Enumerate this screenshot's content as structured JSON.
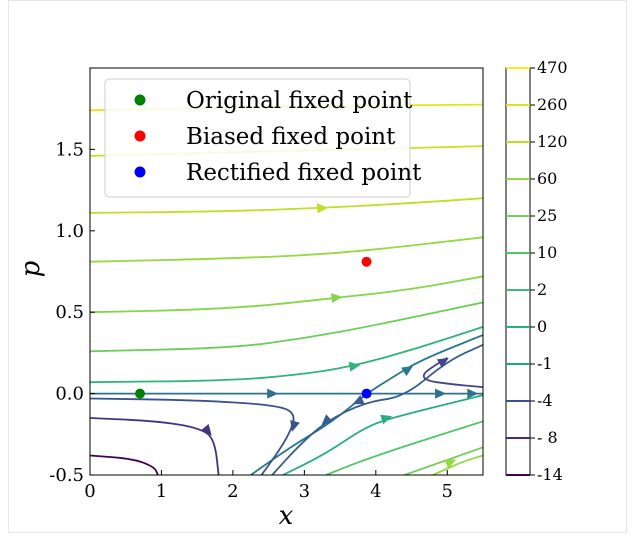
{
  "chart_data": {
    "type": "line",
    "xlabel": "x",
    "ylabel": "p",
    "xlim": [
      0,
      5.5
    ],
    "ylim": [
      -0.5,
      2.0
    ],
    "x_ticks": [
      "0",
      "1",
      "2",
      "3",
      "4",
      "5"
    ],
    "y_ticks": [
      "-0.5",
      "0.0",
      "0.5",
      "1.0",
      "1.5"
    ],
    "legend": {
      "placement": "top-left",
      "entries": [
        {
          "label": "Original fixed point",
          "color": "#008000"
        },
        {
          "label": "Biased fixed point",
          "color": "#ff0000"
        },
        {
          "label": "Rectified fixed point",
          "color": "#0000ff"
        }
      ]
    },
    "fixed_points": [
      {
        "name": "Original fixed point",
        "x": 0.7,
        "y": 0.0,
        "color": "#008000"
      },
      {
        "name": "Biased fixed point",
        "x": 3.87,
        "y": 0.81,
        "color": "#ff0000"
      },
      {
        "name": "Rectified fixed point",
        "x": 3.87,
        "y": 0.0,
        "color": "#0000ff"
      }
    ],
    "colorbar": {
      "labels": [
        "470",
        "260",
        "120",
        "60",
        "25",
        "10",
        "2",
        "0",
        "-1",
        "-4",
        "- 8",
        "-14"
      ],
      "colors": [
        "#fde725",
        "#dde318",
        "#bade28",
        "#95d840",
        "#73d056",
        "#55c667",
        "#3cbb75",
        "#29af7f",
        "#20a386",
        "#3b528b",
        "#472d7b",
        "#440154"
      ]
    },
    "streamlines": [
      {
        "color": "#e5e419",
        "points": [
          [
            0,
            1.74
          ],
          [
            2.75,
            1.765
          ],
          [
            5.5,
            1.775
          ]
        ],
        "arrows": []
      },
      {
        "color": "#c8e020",
        "points": [
          [
            0,
            1.46
          ],
          [
            2.75,
            1.49
          ],
          [
            5.5,
            1.52
          ]
        ],
        "arrows": []
      },
      {
        "color": "#bddf26",
        "points": [
          [
            0,
            1.11
          ],
          [
            2,
            1.12
          ],
          [
            3.2,
            1.14
          ],
          [
            4.5,
            1.17
          ],
          [
            5.5,
            1.2
          ]
        ],
        "arrows": [
          [
            3.25,
            1.14
          ]
        ]
      },
      {
        "color": "#95d840",
        "points": [
          [
            0,
            0.81
          ],
          [
            2,
            0.83
          ],
          [
            3.5,
            0.86
          ],
          [
            5.5,
            0.96
          ]
        ],
        "arrows": []
      },
      {
        "color": "#86d549",
        "points": [
          [
            0,
            0.5
          ],
          [
            2,
            0.52
          ],
          [
            3.5,
            0.59
          ],
          [
            4.5,
            0.64
          ],
          [
            5.5,
            0.72
          ]
        ],
        "arrows": [
          [
            3.45,
            0.59
          ]
        ]
      },
      {
        "color": "#6ccd5a",
        "points": [
          [
            0,
            0.26
          ],
          [
            2,
            0.28
          ],
          [
            3,
            0.34
          ],
          [
            4,
            0.42
          ],
          [
            5.5,
            0.56
          ]
        ],
        "arrows": []
      },
      {
        "color": "#2fb47c",
        "points": [
          [
            0,
            0.07
          ],
          [
            2,
            0.08
          ],
          [
            3,
            0.12
          ],
          [
            3.7,
            0.17
          ],
          [
            4.6,
            0.28
          ],
          [
            5.5,
            0.41
          ]
        ],
        "arrows": [
          [
            3.7,
            0.17
          ]
        ]
      },
      {
        "color": "#2a788e",
        "points": [
          [
            2.25,
            -0.5
          ],
          [
            2.8,
            -0.33
          ],
          [
            3.4,
            -0.17
          ],
          [
            3.87,
            0.0
          ],
          [
            4.2,
            0.09
          ],
          [
            4.6,
            0.2
          ],
          [
            5.5,
            0.36
          ]
        ],
        "arrows": [
          [
            4.45,
            0.15
          ]
        ]
      },
      {
        "color": "#2c718e",
        "points": [
          [
            0,
            0.0
          ],
          [
            2.5,
            0.0
          ],
          [
            3.87,
            0.0
          ],
          [
            5.0,
            0.0
          ],
          [
            5.5,
            0.0
          ]
        ],
        "arrows": [
          [
            2.55,
            0.0
          ],
          [
            4.9,
            0.0
          ],
          [
            5.35,
            0.0
          ]
        ]
      },
      {
        "color": "#365d8d",
        "points": [
          [
            5.5,
            0.3
          ],
          [
            5.0,
            0.2
          ],
          [
            4.4,
            -0.02
          ],
          [
            3.87,
            -0.05
          ],
          [
            3.3,
            -0.17
          ],
          [
            2.9,
            -0.33
          ],
          [
            2.55,
            -0.5
          ]
        ],
        "arrows": [
          [
            3.3,
            -0.17
          ],
          [
            3.75,
            -0.05
          ]
        ]
      },
      {
        "color": "#3b528b",
        "points": [
          [
            0,
            -0.03
          ],
          [
            1.5,
            -0.04
          ],
          [
            2.6,
            -0.07
          ],
          [
            2.88,
            -0.12
          ],
          [
            2.8,
            -0.24
          ],
          [
            2.6,
            -0.38
          ],
          [
            2.4,
            -0.5
          ]
        ],
        "arrows": [
          [
            2.85,
            -0.2
          ]
        ]
      },
      {
        "color": "#414487",
        "points": [
          [
            5.5,
            0.04
          ],
          [
            5.0,
            0.06
          ],
          [
            4.7,
            0.08
          ],
          [
            4.65,
            0.12
          ],
          [
            4.85,
            0.18
          ],
          [
            5.0,
            0.22
          ]
        ],
        "arrows": [
          [
            4.95,
            0.2
          ]
        ]
      },
      {
        "color": "#46337f",
        "points": [
          [
            0,
            -0.15
          ],
          [
            1,
            -0.17
          ],
          [
            1.6,
            -0.22
          ],
          [
            1.75,
            -0.3
          ],
          [
            1.8,
            -0.5
          ]
        ],
        "arrows": [
          [
            1.65,
            -0.23
          ]
        ]
      },
      {
        "color": "#440154",
        "points": [
          [
            0,
            -0.38
          ],
          [
            0.6,
            -0.4
          ],
          [
            0.9,
            -0.45
          ],
          [
            0.95,
            -0.5
          ]
        ],
        "arrows": []
      },
      {
        "color": "#27ad81",
        "points": [
          [
            2.7,
            -0.5
          ],
          [
            3.3,
            -0.37
          ],
          [
            3.87,
            -0.2
          ],
          [
            4.3,
            -0.14
          ],
          [
            5.5,
            -0.01
          ]
        ],
        "arrows": [
          [
            4.15,
            -0.15
          ]
        ]
      },
      {
        "color": "#52c569",
        "points": [
          [
            3.3,
            -0.5
          ],
          [
            4.0,
            -0.38
          ],
          [
            5.5,
            -0.17
          ]
        ],
        "arrows": []
      },
      {
        "color": "#6ece58",
        "points": [
          [
            4.4,
            -0.5
          ],
          [
            5.5,
            -0.33
          ]
        ],
        "arrows": []
      },
      {
        "color": "#95d840",
        "points": [
          [
            4.8,
            -0.5
          ],
          [
            5.2,
            -0.42
          ],
          [
            5.5,
            -0.38
          ]
        ],
        "arrows": [
          [
            5.05,
            -0.42
          ]
        ]
      }
    ]
  }
}
